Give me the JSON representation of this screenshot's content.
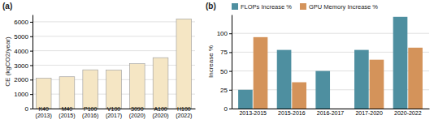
{
  "chart_data": [
    {
      "type": "bar",
      "title": "(a)",
      "categories": [
        "K40\n(2013)",
        "M40\n(2015)",
        "P100\n(2016)",
        "V100\n(2017)",
        "3090\n(2020)",
        "A100\n(2020)",
        "H100\n(2022)"
      ],
      "values": [
        2100,
        2200,
        2680,
        2660,
        3100,
        3520,
        6200
      ],
      "color": "#f5e6c4",
      "ylabel": "CE (kgCO2/year)",
      "ylim": [
        0,
        6500
      ],
      "yticks": [
        0,
        1000,
        2000,
        3000,
        4000,
        5000,
        6000
      ],
      "grid": true
    },
    {
      "type": "bar",
      "title": "(b)",
      "categories": [
        "2013-2015",
        "2015-2016",
        "2016-2017",
        "2017-2020",
        "2020-2022"
      ],
      "series": [
        {
          "name": "FLOPs Increase %",
          "color": "#4e8fa0",
          "values": [
            25,
            78,
            50,
            78,
            122
          ]
        },
        {
          "name": "GPU Memory Increase %",
          "color": "#d4935a",
          "values": [
            95,
            35,
            0,
            65,
            81
          ]
        }
      ],
      "ylabel": "Increase %",
      "ylim": [
        0,
        125
      ],
      "yticks": [
        0,
        25,
        50,
        75,
        100
      ],
      "grid": true,
      "legend": "upper left"
    }
  ]
}
